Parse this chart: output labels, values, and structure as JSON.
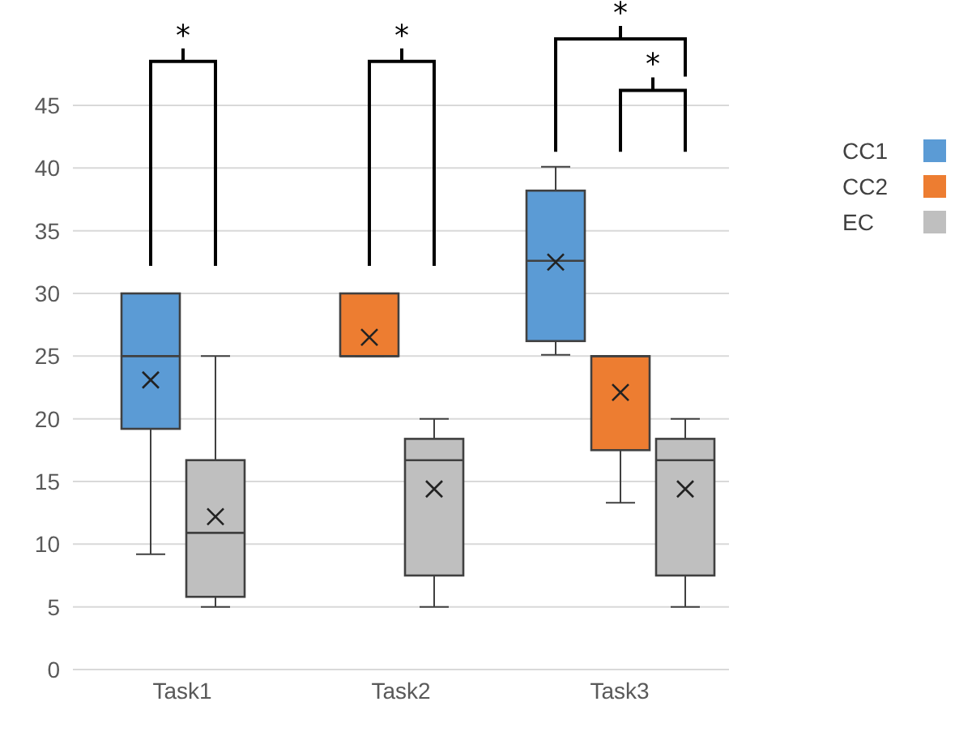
{
  "chart_data": {
    "type": "box",
    "categories": [
      "Task1",
      "Task2",
      "Task3"
    ],
    "ylim": [
      0,
      45
    ],
    "yticks": [
      0,
      5,
      10,
      15,
      20,
      25,
      30,
      35,
      40,
      45
    ],
    "grid": "y",
    "legend": "right",
    "marker": "cross",
    "series": [
      {
        "name": "CC1",
        "color": "#5b9bd5",
        "boxes": [
          {
            "low": 9.2,
            "q1": 19.2,
            "median": 25,
            "q3": 30,
            "high": 30,
            "mean": 23.1
          },
          null,
          {
            "low": 25.1,
            "q1": 26.2,
            "median": 32.6,
            "q3": 38.2,
            "high": 40.1,
            "mean": 32.5
          }
        ]
      },
      {
        "name": "CC2",
        "color": "#ed7d31",
        "boxes": [
          null,
          {
            "low": 25,
            "q1": 25,
            "median": 25,
            "q3": 30,
            "high": 30,
            "mean": 26.5
          },
          {
            "low": 13.3,
            "q1": 17.5,
            "median": 25,
            "q3": 25,
            "high": 25,
            "mean": 22.1
          }
        ]
      },
      {
        "name": "EC",
        "color": "#bfbfbf",
        "boxes": [
          {
            "low": 5,
            "q1": 5.8,
            "median": 10.9,
            "q3": 16.7,
            "high": 25,
            "mean": 12.2
          },
          {
            "low": 5,
            "q1": 7.5,
            "median": 16.7,
            "q3": 18.4,
            "high": 20,
            "mean": 14.4
          },
          {
            "low": 5,
            "q1": 7.5,
            "median": 16.7,
            "q3": 18.4,
            "high": 20,
            "mean": 14.4
          }
        ]
      }
    ],
    "annotations": [
      "*",
      "*",
      "*",
      "*"
    ]
  }
}
